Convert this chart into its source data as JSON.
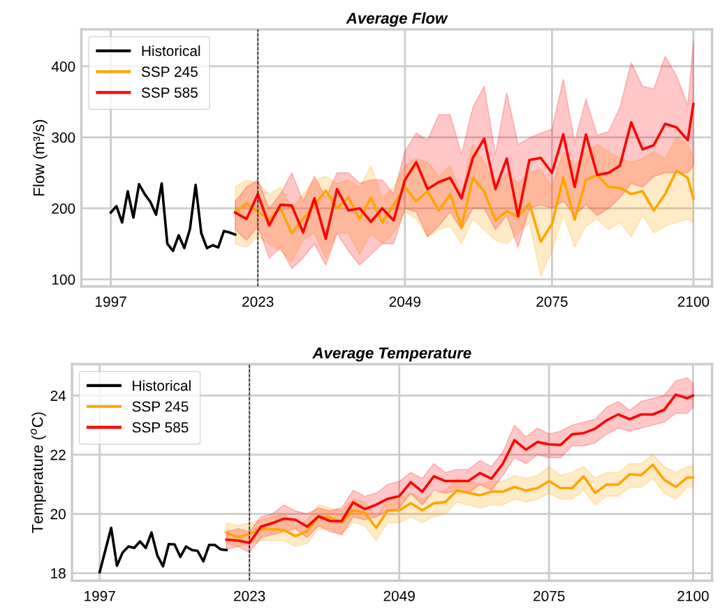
{
  "chart_data": [
    {
      "type": "line",
      "title": "Average Flow",
      "ylabel": "Flow (m³/s)",
      "xlim": [
        1991.8,
        2103.3
      ],
      "xticks": [
        1997,
        2023,
        2049,
        2075,
        2100
      ],
      "ylim": [
        90,
        452
      ],
      "yticks": [
        100,
        200,
        300,
        400
      ],
      "grid": true,
      "legend": "top left",
      "line_style": "solid",
      "ref_lines": [
        {
          "axis": "x",
          "value": 2023,
          "color": "#000000",
          "line_style": "dashed"
        }
      ],
      "series": [
        {
          "name": "Historical",
          "color": "#000000",
          "x": [
            1997,
            1998,
            1999,
            2000,
            2001,
            2002,
            2003,
            2004,
            2005,
            2006,
            2007,
            2008,
            2009,
            2010,
            2011,
            2012,
            2013,
            2014,
            2015,
            2016,
            2017,
            2018,
            2019
          ],
          "values": [
            194,
            203,
            180,
            224,
            187,
            234,
            220,
            209,
            191,
            235,
            150,
            140,
            162,
            144,
            171,
            233,
            165,
            144,
            148,
            145,
            168,
            166,
            163
          ]
        },
        {
          "name": "SSP 245",
          "color": "#ffa500",
          "x": [
            2019,
            2021,
            2023,
            2025,
            2027,
            2029,
            2031,
            2033,
            2035,
            2037,
            2039,
            2041,
            2043,
            2045,
            2047,
            2049,
            2051,
            2053,
            2055,
            2057,
            2059,
            2061,
            2063,
            2065,
            2067,
            2069,
            2071,
            2073,
            2075,
            2077,
            2079,
            2081,
            2083,
            2085,
            2087,
            2089,
            2091,
            2093,
            2095,
            2097,
            2099,
            2100
          ],
          "values": [
            195,
            207,
            195,
            185,
            200,
            165,
            185,
            205,
            225,
            200,
            215,
            185,
            215,
            180,
            205,
            230,
            210,
            224,
            197,
            220,
            174,
            243,
            224,
            183,
            196,
            188,
            207,
            153,
            178,
            243,
            184,
            240,
            247,
            230,
            229,
            220,
            224,
            197,
            220,
            253,
            243,
            214
          ],
          "upper": [
            230,
            240,
            235,
            220,
            230,
            200,
            220,
            240,
            245,
            235,
            240,
            230,
            260,
            215,
            230,
            260,
            270,
            265,
            245,
            260,
            220,
            290,
            265,
            230,
            250,
            235,
            250,
            255,
            230,
            280,
            260,
            280,
            290,
            280,
            270,
            265,
            270,
            280,
            270,
            300,
            290,
            270
          ],
          "lower": [
            150,
            145,
            160,
            150,
            140,
            125,
            155,
            165,
            130,
            165,
            165,
            135,
            165,
            150,
            165,
            195,
            185,
            160,
            170,
            175,
            150,
            185,
            170,
            155,
            150,
            165,
            180,
            105,
            140,
            190,
            145,
            175,
            185,
            170,
            180,
            160,
            190,
            165,
            175,
            180,
            185,
            180
          ]
        },
        {
          "name": "SSP 585",
          "color": "#ff0000",
          "x": [
            2019,
            2021,
            2023,
            2025,
            2027,
            2029,
            2031,
            2033,
            2035,
            2037,
            2039,
            2041,
            2043,
            2045,
            2047,
            2049,
            2051,
            2053,
            2055,
            2057,
            2059,
            2061,
            2063,
            2065,
            2067,
            2069,
            2071,
            2073,
            2075,
            2077,
            2079,
            2081,
            2083,
            2085,
            2087,
            2089,
            2091,
            2093,
            2095,
            2097,
            2099,
            2100
          ],
          "values": [
            194,
            185,
            220,
            176,
            205,
            204,
            166,
            214,
            157,
            227,
            197,
            200,
            181,
            200,
            183,
            240,
            265,
            227,
            237,
            243,
            214,
            271,
            298,
            227,
            270,
            189,
            268,
            271,
            250,
            304,
            230,
            304,
            247,
            250,
            260,
            321,
            283,
            289,
            319,
            314,
            296,
            347
          ],
          "upper": [
            210,
            230,
            240,
            200,
            220,
            250,
            210,
            245,
            215,
            250,
            250,
            235,
            240,
            240,
            220,
            280,
            306,
            296,
            332,
            332,
            276,
            342,
            372,
            276,
            363,
            290,
            299,
            306,
            311,
            382,
            293,
            354,
            303,
            308,
            342,
            405,
            372,
            368,
            414,
            387,
            345,
            436
          ],
          "lower": [
            170,
            155,
            175,
            130,
            145,
            115,
            130,
            150,
            120,
            165,
            140,
            120,
            135,
            150,
            150,
            200,
            195,
            160,
            175,
            195,
            170,
            200,
            200,
            170,
            190,
            145,
            200,
            205,
            200,
            210,
            190,
            205,
            190,
            200,
            215,
            235,
            230,
            245,
            250,
            250,
            250,
            260
          ]
        }
      ]
    },
    {
      "type": "line",
      "title": "Average Temperature",
      "ylabel": "Temperature ($^{o}$C)",
      "xlim": [
        1992.2,
        2103.3
      ],
      "xticks": [
        1997,
        2023,
        2049,
        2075,
        2100
      ],
      "ylim": [
        17.74,
        25.06
      ],
      "yticks": [
        18,
        20,
        22,
        24
      ],
      "grid": true,
      "legend": "top left",
      "line_style": "solid",
      "ref_lines": [
        {
          "axis": "x",
          "value": 2023,
          "color": "#000000",
          "line_style": "dashed"
        }
      ],
      "series": [
        {
          "name": "Historical",
          "color": "#000000",
          "x": [
            1997,
            1998,
            1999,
            2000,
            2001,
            2002,
            2003,
            2004,
            2005,
            2006,
            2007,
            2008,
            2009,
            2010,
            2011,
            2012,
            2013,
            2014,
            2015,
            2016,
            2017,
            2018,
            2019
          ],
          "values": [
            18.03,
            18.78,
            19.53,
            18.25,
            18.7,
            18.9,
            18.85,
            19.07,
            18.85,
            19.37,
            18.6,
            18.23,
            18.98,
            18.97,
            18.55,
            18.9,
            18.78,
            18.75,
            18.4,
            18.95,
            18.95,
            18.8,
            18.78
          ]
        },
        {
          "name": "SSP 245",
          "color": "#ffa500",
          "x": [
            2019,
            2021,
            2023,
            2025,
            2027,
            2029,
            2031,
            2033,
            2035,
            2037,
            2039,
            2041,
            2043,
            2045,
            2047,
            2049,
            2051,
            2053,
            2055,
            2057,
            2059,
            2061,
            2063,
            2065,
            2067,
            2069,
            2071,
            2073,
            2075,
            2077,
            2079,
            2081,
            2083,
            2085,
            2087,
            2089,
            2091,
            2093,
            2095,
            2097,
            2099,
            2100
          ],
          "values": [
            19.37,
            19.21,
            19.33,
            19.49,
            19.49,
            19.45,
            19.25,
            19.41,
            19.92,
            19.88,
            19.72,
            20.12,
            20.04,
            19.53,
            20.12,
            20.12,
            20.36,
            20.12,
            20.36,
            20.4,
            20.79,
            20.71,
            20.63,
            20.75,
            20.75,
            20.91,
            20.79,
            20.87,
            21.11,
            20.87,
            20.87,
            21.27,
            20.71,
            20.99,
            20.99,
            21.34,
            21.31,
            21.66,
            21.15,
            20.91,
            21.23,
            21.23
          ],
          "upper": [
            19.7,
            19.6,
            19.7,
            19.8,
            19.9,
            20.0,
            19.6,
            19.8,
            20.3,
            20.2,
            20.1,
            20.5,
            20.4,
            19.9,
            20.5,
            20.5,
            20.7,
            20.5,
            20.7,
            20.8,
            21.2,
            21.1,
            21.0,
            21.1,
            21.1,
            21.3,
            21.2,
            21.3,
            21.6,
            21.3,
            21.4,
            21.6,
            21.2,
            21.4,
            21.4,
            21.7,
            21.7,
            22.0,
            21.6,
            21.4,
            21.6,
            21.6
          ],
          "lower": [
            19.0,
            18.9,
            19.0,
            19.1,
            19.1,
            19.1,
            18.9,
            19.0,
            19.5,
            19.5,
            19.3,
            19.7,
            19.6,
            19.1,
            19.7,
            19.7,
            19.9,
            19.7,
            19.9,
            20.0,
            20.4,
            20.3,
            20.2,
            20.3,
            20.3,
            20.5,
            20.4,
            20.5,
            20.7,
            20.5,
            20.5,
            20.8,
            20.3,
            20.6,
            20.6,
            20.9,
            20.9,
            21.2,
            20.7,
            20.5,
            20.9,
            20.9
          ]
        },
        {
          "name": "SSP 585",
          "color": "#ff0000",
          "x": [
            2019,
            2021,
            2023,
            2025,
            2027,
            2029,
            2031,
            2033,
            2035,
            2037,
            2039,
            2041,
            2043,
            2045,
            2047,
            2049,
            2051,
            2053,
            2055,
            2057,
            2059,
            2061,
            2063,
            2065,
            2067,
            2069,
            2071,
            2073,
            2075,
            2077,
            2079,
            2081,
            2083,
            2085,
            2087,
            2089,
            2091,
            2093,
            2095,
            2097,
            2099,
            2100
          ],
          "values": [
            19.13,
            19.1,
            19.02,
            19.57,
            19.69,
            19.84,
            19.8,
            19.57,
            19.92,
            19.76,
            19.76,
            20.39,
            20.16,
            20.31,
            20.51,
            20.6,
            21.07,
            20.75,
            21.27,
            21.11,
            21.11,
            21.11,
            21.38,
            21.19,
            21.7,
            22.49,
            22.17,
            22.43,
            22.35,
            22.33,
            22.69,
            22.73,
            22.88,
            23.16,
            23.36,
            23.2,
            23.36,
            23.36,
            23.52,
            24.03,
            23.91,
            24.0
          ],
          "upper": [
            19.4,
            19.5,
            19.4,
            19.9,
            20.0,
            20.3,
            20.1,
            20.0,
            20.2,
            20.1,
            20.2,
            20.8,
            20.6,
            20.7,
            21.0,
            21.1,
            21.4,
            21.2,
            21.7,
            21.4,
            21.5,
            21.5,
            21.8,
            21.6,
            22.1,
            23.0,
            22.6,
            22.9,
            22.7,
            22.8,
            23.0,
            23.1,
            23.2,
            23.6,
            23.8,
            23.5,
            23.8,
            23.9,
            24.0,
            24.5,
            24.6,
            24.4
          ],
          "lower": [
            18.8,
            18.9,
            18.7,
            19.2,
            19.3,
            19.4,
            19.5,
            19.2,
            19.6,
            19.4,
            19.3,
            19.9,
            19.8,
            19.9,
            20.1,
            20.2,
            20.7,
            20.3,
            20.8,
            20.7,
            20.8,
            20.7,
            21.0,
            20.8,
            21.3,
            21.9,
            21.7,
            22.0,
            21.9,
            21.9,
            22.3,
            22.3,
            22.4,
            22.7,
            22.9,
            22.8,
            22.9,
            23.0,
            23.1,
            23.4,
            23.4,
            23.6
          ]
        }
      ]
    }
  ]
}
